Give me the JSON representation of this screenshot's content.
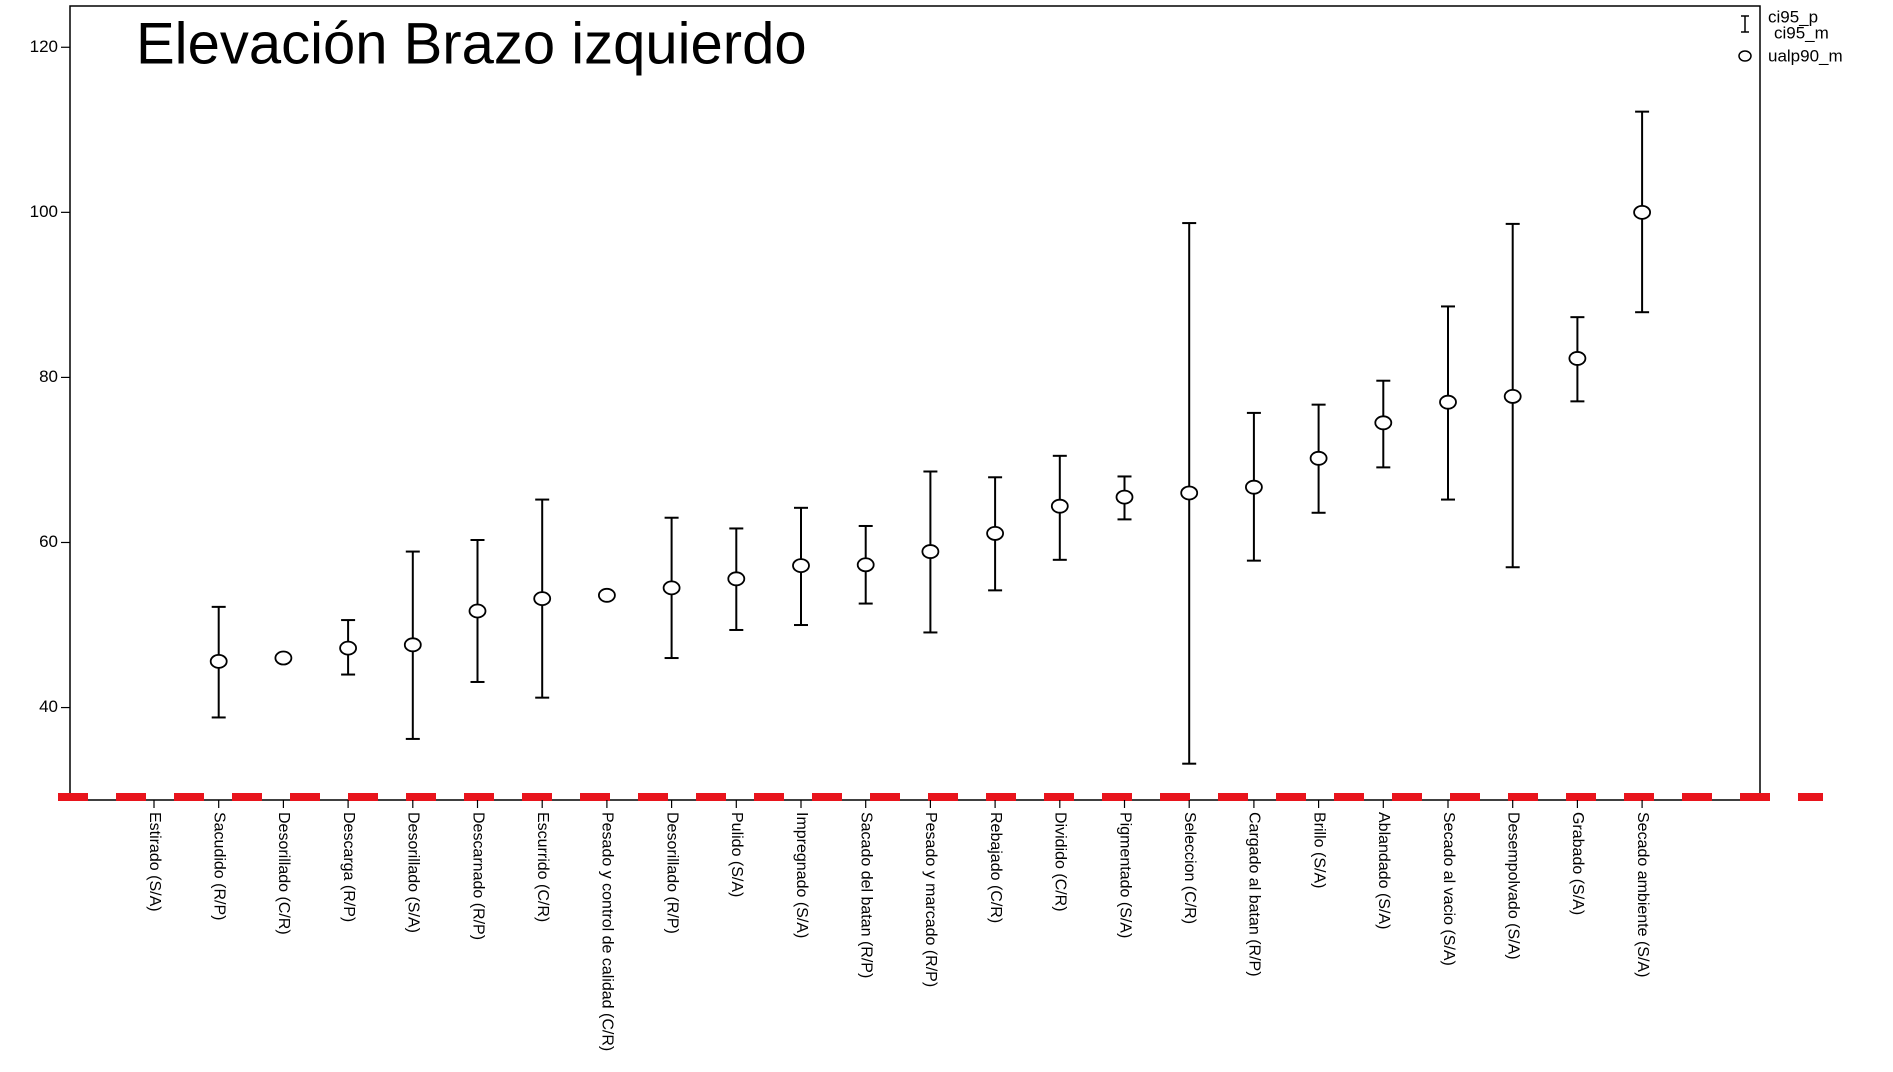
{
  "chart_data": {
    "type": "errorbar",
    "title": "Elevación Brazo izquierdo",
    "categories": [
      "Estirado (S/A)",
      "Sacudido (R/P)",
      "Desorillado (C/R)",
      "Descarga (R/P)",
      "Desorillado (S/A)",
      "Descarnado (R/P)",
      "Escurrido (C/R)",
      "Pesado y control de calidad (C/R)",
      "Desorillado (R/P)",
      "Pulido (S/A)",
      "Impregnado (S/A)",
      "Sacado del batan (R/P)",
      "Pesado y marcado (R/P)",
      "Rebajado (C/R)",
      "Dividido (C/R)",
      "Pigmentado (S/A)",
      "Seleccion (C/R)",
      "Cargado al batan (R/P)",
      "Brillo (S/A)",
      "Ablandado (S/A)",
      "Secado al vacio (S/A)",
      "Desempolvado (S/A)",
      "Grabado (S/A)",
      "Secado ambiente (S/A)"
    ],
    "series": [
      {
        "name": "ci95_p",
        "color": "#000000",
        "values": [
          null,
          52.2,
          null,
          50.6,
          58.9,
          60.3,
          65.2,
          null,
          63.0,
          61.7,
          64.2,
          62.0,
          68.6,
          67.9,
          70.5,
          68.0,
          98.7,
          75.7,
          76.7,
          79.6,
          88.6,
          98.6,
          87.3,
          112.2
        ]
      },
      {
        "name": "ci95_m",
        "color": "#000000",
        "values": [
          null,
          38.8,
          null,
          44.0,
          36.2,
          43.1,
          41.2,
          null,
          46.0,
          49.4,
          50.0,
          52.6,
          49.1,
          54.2,
          57.9,
          62.8,
          33.2,
          57.8,
          63.6,
          69.1,
          65.2,
          57.0,
          77.1,
          87.9
        ]
      },
      {
        "name": "ualp90_m",
        "color": "#000000",
        "values": [
          null,
          45.6,
          46.0,
          47.2,
          47.6,
          51.7,
          53.2,
          53.6,
          54.5,
          55.6,
          57.2,
          57.3,
          58.9,
          61.1,
          64.4,
          65.5,
          66.0,
          66.7,
          70.2,
          74.5,
          77.0,
          77.7,
          82.3,
          100.0
        ]
      }
    ],
    "ylim": [
      28.8,
      125
    ],
    "yticks": [
      40,
      60,
      80,
      100,
      120
    ],
    "legend": "upper right"
  }
}
